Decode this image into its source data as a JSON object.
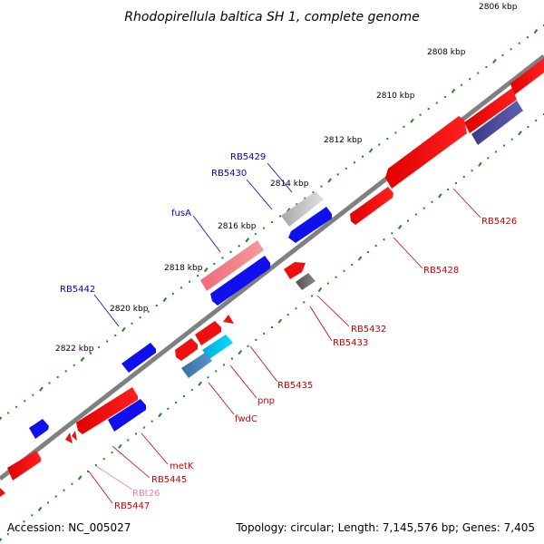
{
  "title": "Rhodopirellula baltica SH 1, complete genome",
  "footer": {
    "accession": "Accession: NC_005027",
    "topology": "Topology: circular; Length: 7,145,576 bp; Genes: 7,405"
  },
  "ticks": [
    "2806 kbp",
    "2808 kbp",
    "2810 kbp",
    "2812 kbp",
    "2814 kbp",
    "2816 kbp",
    "2818 kbp",
    "2820 kbp",
    "2822 kbp"
  ],
  "genes_top": [
    {
      "name": "RB5429",
      "color": "#0000cc"
    },
    {
      "name": "RB5430",
      "color": "#0000cc"
    },
    {
      "name": "fusA",
      "color": "#0000cc"
    },
    {
      "name": "RB5442",
      "color": "#0000cc"
    }
  ],
  "genes_bottom": [
    {
      "name": "RB5426",
      "color": "#cc0000"
    },
    {
      "name": "RB5428",
      "color": "#cc0000"
    },
    {
      "name": "RB5432",
      "color": "#cc0000"
    },
    {
      "name": "RB5433",
      "color": "#cc0000"
    },
    {
      "name": "RB5435",
      "color": "#cc0000"
    },
    {
      "name": "pnp",
      "color": "#cc0000"
    },
    {
      "name": "fwdC",
      "color": "#cc0000"
    },
    {
      "name": "metK",
      "color": "#cc0000"
    },
    {
      "name": "RB5445",
      "color": "#cc0000"
    },
    {
      "name": "RBt26",
      "color": "#f080b0"
    },
    {
      "name": "RB5447",
      "color": "#cc0000"
    }
  ],
  "colors": {
    "forward_gene": "#1010ee",
    "reverse_gene": "#ee1010",
    "backbone": "#808080",
    "ruler_dots": "#1a8a1a"
  }
}
